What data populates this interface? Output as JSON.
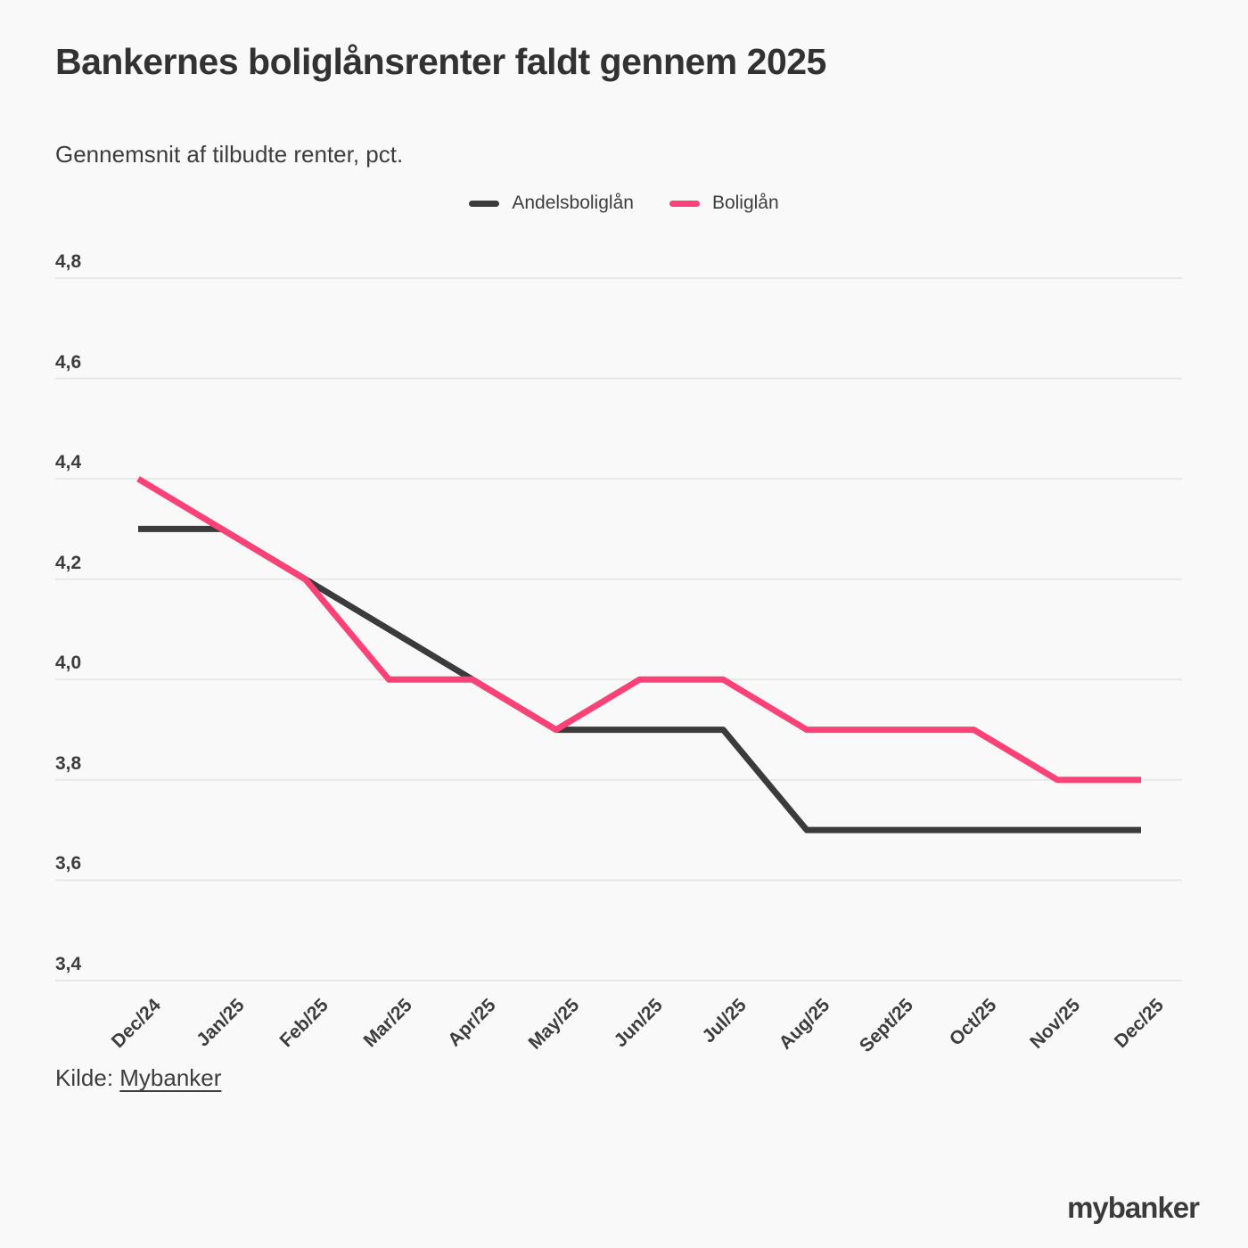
{
  "header": {
    "title": "Bankernes boliglånsrenter faldt gennem 2025",
    "subtitle": "Gennemsnit af tilbudte renter, pct."
  },
  "legend": {
    "items": [
      {
        "label": "Andelsboliglån",
        "color": "#3b3b3b"
      },
      {
        "label": "Boliglån",
        "color": "#fb4278"
      }
    ]
  },
  "chart_data": {
    "type": "line",
    "title": "Bankernes boliglånsrenter faldt gennem 2025",
    "subtitle": "Gennemsnit af tilbudte renter, pct.",
    "x": [
      "Dec/24",
      "Jan/25",
      "Feb/25",
      "Mar/25",
      "Apr/25",
      "May/25",
      "Jun/25",
      "Jul/25",
      "Aug/25",
      "Sept/25",
      "Oct/25",
      "Nov/25",
      "Dec/25"
    ],
    "series": [
      {
        "name": "Andelsboliglån",
        "color": "#3b3b3b",
        "values": [
          4.3,
          4.3,
          4.2,
          4.1,
          4.0,
          3.9,
          3.9,
          3.9,
          3.7,
          3.7,
          3.7,
          3.7,
          3.7
        ]
      },
      {
        "name": "Boliglån",
        "color": "#fb4278",
        "values": [
          4.4,
          4.3,
          4.2,
          4.0,
          4.0,
          3.9,
          4.0,
          4.0,
          3.9,
          3.9,
          3.9,
          3.8,
          3.8
        ]
      }
    ],
    "ylabel": "pct.",
    "ylim": [
      3.4,
      4.8
    ],
    "yticks": [
      "4,8",
      "4,6",
      "4,4",
      "4,2",
      "4,0",
      "3,8",
      "3,6",
      "3,4"
    ],
    "ytick_values": [
      4.8,
      4.6,
      4.4,
      4.2,
      4.0,
      3.8,
      3.6,
      3.4
    ],
    "grid": true,
    "legend_position": "top-center"
  },
  "footer": {
    "source_prefix": "Kilde: ",
    "source_link": "Mybanker",
    "logo": "mybanker"
  },
  "colors": {
    "background": "#f9f9f9",
    "grid": "#e7e7e7",
    "text": "#3d3d3d",
    "title_text": "#323232",
    "accent_dark": "#3b3b3b",
    "accent_pink": "#fb4278"
  }
}
